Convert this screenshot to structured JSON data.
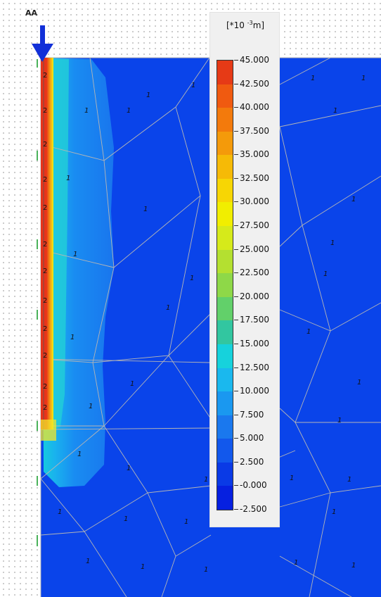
{
  "view": {
    "section_label": "AA",
    "load_arrow": "down-arrow-icon",
    "mesh_region_marker": "1",
    "pile_region_marker": "2",
    "unit_label_base": "[*10 ",
    "unit_label_exp": "-3",
    "unit_label_suffix": "m]"
  },
  "legend": {
    "labels": [
      "45.000",
      "42.500",
      "40.000",
      "37.500",
      "35.000",
      "32.500",
      "30.000",
      "27.500",
      "25.000",
      "22.500",
      "20.000",
      "17.500",
      "15.000",
      "12.500",
      "10.000",
      "7.500",
      "5.000",
      "2.500",
      "-0.000",
      "-2.500"
    ],
    "colors": [
      "#e63a16",
      "#f05a10",
      "#f37a0c",
      "#f49a0a",
      "#f6ba06",
      "#f7d604",
      "#f1ee00",
      "#d6ea1a",
      "#b4e030",
      "#8ed848",
      "#62d06a",
      "#32c6a0",
      "#16d2dc",
      "#1ab8ee",
      "#1a98f0",
      "#1a78ee",
      "#1258ec",
      "#0a3ae6",
      "#0620e0"
    ]
  }
}
